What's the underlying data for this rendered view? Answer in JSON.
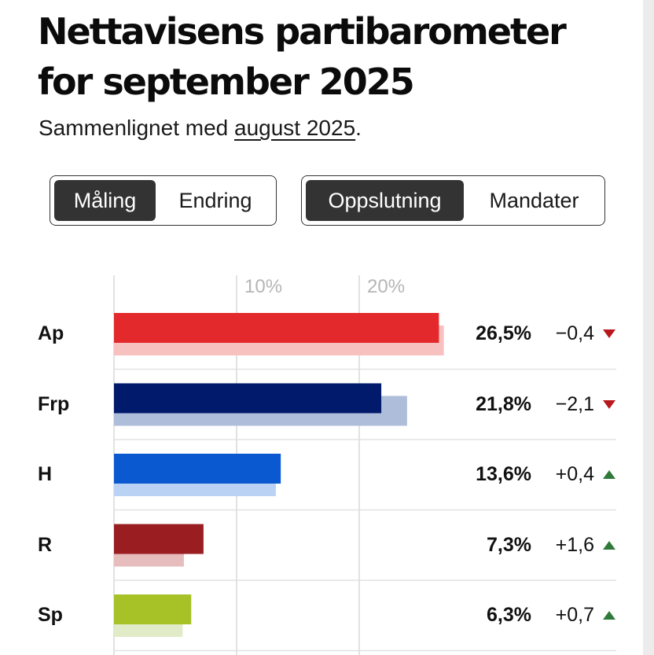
{
  "header": {
    "title": "Nettavisens partibarometer for september 2025",
    "subtitle_prefix": "Sammenlignet med ",
    "subtitle_link": "august 2025",
    "subtitle_suffix": "."
  },
  "toggles": {
    "view": {
      "options": [
        "Måling",
        "Endring"
      ],
      "active": 0
    },
    "metric": {
      "options": [
        "Oppslutning",
        "Mandater"
      ],
      "active": 0
    }
  },
  "chart_data": {
    "type": "bar",
    "orientation": "horizontal",
    "x_ticks": [
      {
        "value": 10,
        "label": "10%"
      },
      {
        "value": 20,
        "label": "20%"
      }
    ],
    "xlim": [
      0,
      30
    ],
    "grid": true,
    "categories": [
      "Ap",
      "Frp",
      "H",
      "R",
      "Sp"
    ],
    "series": [
      {
        "values": [
          26.5,
          21.8,
          13.6,
          7.3,
          6.3
        ]
      },
      {
        "values": [
          26.9,
          23.9,
          13.2,
          5.7,
          5.6
        ]
      }
    ],
    "value_labels": [
      "26,5%",
      "21,8%",
      "13,6%",
      "7,3%",
      "6,3%"
    ],
    "change_labels": [
      "−0,4",
      "−2,1",
      "+0,4",
      "+1,6",
      "+0,7"
    ],
    "change_direction": [
      "down",
      "down",
      "up",
      "up",
      "up"
    ],
    "colors": [
      "#e3292b",
      "#021a6b",
      "#0a59d1",
      "#9a1d22",
      "#a6c226"
    ],
    "prev_colors": [
      "#f7c1bf",
      "#aebdd9",
      "#bad3f5",
      "#e7bcbc",
      "#e1ebc7"
    ],
    "arrow_colors": {
      "up": "#2f7a3a",
      "down": "#b8181c"
    }
  }
}
